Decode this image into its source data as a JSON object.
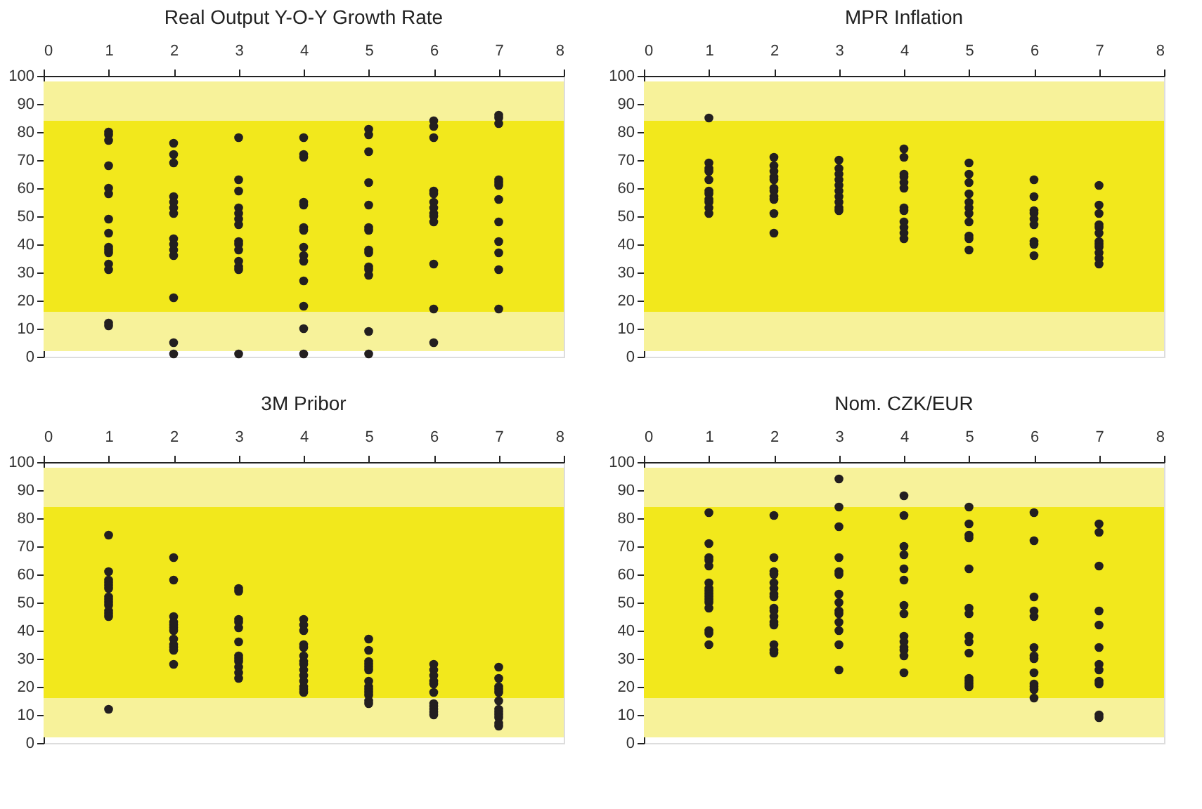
{
  "chart_data": [
    {
      "type": "scatter",
      "title": "Real Output Y-O-Y Growth Rate",
      "xlim": [
        0,
        8
      ],
      "xticks": [
        0,
        1,
        2,
        3,
        4,
        5,
        6,
        7,
        8
      ],
      "ylim": [
        0,
        100
      ],
      "yticks": [
        0,
        10,
        20,
        30,
        40,
        50,
        60,
        70,
        80,
        90,
        100
      ],
      "grid": false,
      "marker": "circle",
      "bands": [
        {
          "axis": "y",
          "from": 2,
          "to": 98,
          "color": "#f7f29a"
        },
        {
          "axis": "y",
          "from": 16,
          "to": 84,
          "color": "#f2e81c"
        }
      ],
      "series": [
        {
          "color": "#231f20",
          "x": [
            1,
            1,
            1,
            1,
            1,
            1,
            1,
            1,
            1,
            1,
            1,
            1,
            1,
            1,
            1,
            2,
            2,
            2,
            2,
            2,
            2,
            2,
            2,
            2,
            2,
            2,
            2,
            2,
            2,
            3,
            3,
            3,
            3,
            3,
            3,
            3,
            3,
            3,
            3,
            3,
            3,
            3,
            3,
            4,
            4,
            4,
            4,
            4,
            4,
            4,
            4,
            4,
            4,
            4,
            4,
            4,
            4,
            5,
            5,
            5,
            5,
            5,
            5,
            5,
            5,
            5,
            5,
            5,
            5,
            5,
            5,
            6,
            6,
            6,
            6,
            6,
            6,
            6,
            6,
            6,
            6,
            6,
            6,
            6,
            7,
            7,
            7,
            7,
            7,
            7,
            7,
            7,
            7,
            7,
            7,
            7
          ],
          "values": [
            80,
            79,
            77,
            68,
            60,
            58,
            49,
            44,
            39,
            38,
            37,
            33,
            31,
            12,
            11,
            76,
            72,
            69,
            57,
            55,
            53,
            51,
            42,
            40,
            38,
            36,
            21,
            5,
            1,
            78,
            63,
            59,
            53,
            51,
            49,
            47,
            41,
            40,
            38,
            34,
            32,
            31,
            1,
            78,
            72,
            71,
            55,
            54,
            46,
            45,
            39,
            36,
            34,
            27,
            18,
            10,
            1,
            81,
            79,
            73,
            62,
            54,
            46,
            45,
            38,
            37,
            32,
            31,
            29,
            9,
            1,
            84,
            82,
            78,
            59,
            58,
            55,
            53,
            51,
            50,
            48,
            33,
            17,
            5,
            86,
            85,
            83,
            63,
            62,
            61,
            56,
            48,
            41,
            37,
            31,
            17
          ]
        }
      ]
    },
    {
      "type": "scatter",
      "title": "MPR Inflation",
      "xlim": [
        0,
        8
      ],
      "xticks": [
        0,
        1,
        2,
        3,
        4,
        5,
        6,
        7,
        8
      ],
      "ylim": [
        0,
        100
      ],
      "yticks": [
        0,
        10,
        20,
        30,
        40,
        50,
        60,
        70,
        80,
        90,
        100
      ],
      "grid": false,
      "marker": "circle",
      "bands": [
        {
          "axis": "y",
          "from": 2,
          "to": 98,
          "color": "#f7f29a"
        },
        {
          "axis": "y",
          "from": 16,
          "to": 84,
          "color": "#f2e81c"
        }
      ],
      "series": [
        {
          "color": "#231f20",
          "x": [
            1,
            1,
            1,
            1,
            1,
            1,
            1,
            1,
            1,
            1,
            1,
            2,
            2,
            2,
            2,
            2,
            2,
            2,
            2,
            2,
            2,
            2,
            3,
            3,
            3,
            3,
            3,
            3,
            3,
            3,
            3,
            3,
            4,
            4,
            4,
            4,
            4,
            4,
            4,
            4,
            4,
            4,
            4,
            4,
            5,
            5,
            5,
            5,
            5,
            5,
            5,
            5,
            5,
            5,
            5,
            6,
            6,
            6,
            6,
            6,
            6,
            6,
            6,
            6,
            7,
            7,
            7,
            7,
            7,
            7,
            7,
            7,
            7,
            7,
            7,
            7
          ],
          "values": [
            85,
            69,
            67,
            66,
            63,
            59,
            58,
            56,
            55,
            53,
            51,
            71,
            68,
            66,
            64,
            63,
            60,
            59,
            57,
            56,
            51,
            44,
            70,
            67,
            65,
            63,
            61,
            59,
            57,
            55,
            53,
            52,
            74,
            71,
            65,
            64,
            62,
            60,
            53,
            52,
            48,
            46,
            44,
            42,
            69,
            65,
            62,
            58,
            55,
            53,
            51,
            48,
            43,
            42,
            38,
            63,
            57,
            52,
            51,
            49,
            47,
            41,
            40,
            36,
            61,
            54,
            51,
            47,
            46,
            44,
            41,
            40,
            39,
            37,
            35,
            33
          ]
        }
      ]
    },
    {
      "type": "scatter",
      "title": "3M Pribor",
      "xlim": [
        0,
        8
      ],
      "xticks": [
        0,
        1,
        2,
        3,
        4,
        5,
        6,
        7,
        8
      ],
      "ylim": [
        0,
        100
      ],
      "yticks": [
        0,
        10,
        20,
        30,
        40,
        50,
        60,
        70,
        80,
        90,
        100
      ],
      "grid": false,
      "marker": "circle",
      "bands": [
        {
          "axis": "y",
          "from": 2,
          "to": 98,
          "color": "#f7f29a"
        },
        {
          "axis": "y",
          "from": 16,
          "to": 84,
          "color": "#f2e81c"
        }
      ],
      "series": [
        {
          "color": "#231f20",
          "x": [
            1,
            1,
            1,
            1,
            1,
            1,
            1,
            1,
            1,
            1,
            1,
            1,
            1,
            1,
            2,
            2,
            2,
            2,
            2,
            2,
            2,
            2,
            2,
            2,
            2,
            2,
            3,
            3,
            3,
            3,
            3,
            3,
            3,
            3,
            3,
            3,
            3,
            3,
            4,
            4,
            4,
            4,
            4,
            4,
            4,
            4,
            4,
            4,
            4,
            4,
            4,
            4,
            5,
            5,
            5,
            5,
            5,
            5,
            5,
            5,
            5,
            5,
            5,
            5,
            5,
            6,
            6,
            6,
            6,
            6,
            6,
            6,
            6,
            6,
            6,
            6,
            7,
            7,
            7,
            7,
            7,
            7,
            7,
            7,
            7,
            7,
            7,
            7
          ],
          "values": [
            74,
            61,
            58,
            57,
            56,
            55,
            52,
            51,
            50,
            49,
            47,
            46,
            45,
            12,
            66,
            58,
            45,
            43,
            42,
            41,
            40,
            37,
            35,
            34,
            33,
            28,
            55,
            54,
            44,
            43,
            41,
            36,
            31,
            30,
            29,
            27,
            25,
            23,
            44,
            42,
            40,
            35,
            34,
            31,
            29,
            28,
            26,
            24,
            22,
            20,
            19,
            18,
            37,
            33,
            29,
            28,
            27,
            26,
            22,
            20,
            19,
            18,
            17,
            15,
            14,
            28,
            26,
            24,
            22,
            21,
            18,
            14,
            13,
            12,
            11,
            10,
            27,
            23,
            20,
            19,
            18,
            15,
            12,
            11,
            10,
            9,
            7,
            6
          ]
        }
      ]
    },
    {
      "type": "scatter",
      "title": "Nom. CZK/EUR",
      "xlim": [
        0,
        8
      ],
      "xticks": [
        0,
        1,
        2,
        3,
        4,
        5,
        6,
        7,
        8
      ],
      "ylim": [
        0,
        100
      ],
      "yticks": [
        0,
        10,
        20,
        30,
        40,
        50,
        60,
        70,
        80,
        90,
        100
      ],
      "grid": false,
      "marker": "circle",
      "bands": [
        {
          "axis": "y",
          "from": 2,
          "to": 98,
          "color": "#f7f29a"
        },
        {
          "axis": "y",
          "from": 16,
          "to": 84,
          "color": "#f2e81c"
        }
      ],
      "series": [
        {
          "color": "#231f20",
          "x": [
            1,
            1,
            1,
            1,
            1,
            1,
            1,
            1,
            1,
            1,
            1,
            1,
            1,
            1,
            1,
            1,
            2,
            2,
            2,
            2,
            2,
            2,
            2,
            2,
            2,
            2,
            2,
            2,
            2,
            2,
            2,
            2,
            3,
            3,
            3,
            3,
            3,
            3,
            3,
            3,
            3,
            3,
            3,
            3,
            3,
            3,
            4,
            4,
            4,
            4,
            4,
            4,
            4,
            4,
            4,
            4,
            4,
            4,
            4,
            4,
            5,
            5,
            5,
            5,
            5,
            5,
            5,
            5,
            5,
            5,
            5,
            5,
            5,
            5,
            6,
            6,
            6,
            6,
            6,
            6,
            6,
            6,
            6,
            6,
            6,
            6,
            6,
            7,
            7,
            7,
            7,
            7,
            7,
            7,
            7,
            7,
            7,
            7,
            7
          ],
          "values": [
            82,
            71,
            66,
            65,
            63,
            57,
            55,
            54,
            53,
            52,
            51,
            50,
            48,
            40,
            39,
            35,
            81,
            66,
            61,
            60,
            57,
            55,
            53,
            52,
            48,
            47,
            45,
            43,
            42,
            35,
            33,
            32,
            94,
            84,
            77,
            66,
            61,
            60,
            53,
            50,
            47,
            46,
            43,
            40,
            35,
            26,
            88,
            81,
            70,
            67,
            62,
            58,
            49,
            46,
            38,
            36,
            34,
            33,
            31,
            25,
            84,
            78,
            74,
            73,
            62,
            48,
            46,
            38,
            36,
            32,
            23,
            22,
            21,
            20,
            82,
            72,
            52,
            47,
            45,
            34,
            31,
            30,
            25,
            21,
            20,
            19,
            16,
            78,
            75,
            63,
            47,
            42,
            34,
            28,
            26,
            22,
            21,
            10,
            9
          ]
        }
      ]
    }
  ]
}
